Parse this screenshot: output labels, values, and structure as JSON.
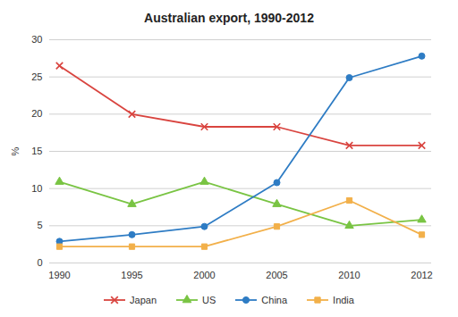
{
  "chart_data": {
    "type": "line",
    "title": "Australian export, 1990-2012",
    "y_label": "%",
    "categories": [
      "1990",
      "1995",
      "2000",
      "2005",
      "2010",
      "2012"
    ],
    "series": [
      {
        "name": "Japan",
        "color": "#d9443f",
        "marker": "x",
        "values": [
          26.5,
          20,
          18.3,
          18.3,
          15.8,
          15.8
        ]
      },
      {
        "name": "US",
        "color": "#79c443",
        "marker": "triangle",
        "values": [
          10.9,
          7.9,
          10.9,
          7.9,
          5,
          5.8
        ]
      },
      {
        "name": "China",
        "color": "#2e7cc4",
        "marker": "circle",
        "values": [
          2.9,
          3.8,
          4.9,
          10.8,
          24.9,
          27.8
        ]
      },
      {
        "name": "India",
        "color": "#f2b04a",
        "marker": "square",
        "values": [
          2.2,
          2.2,
          2.2,
          4.9,
          8.4,
          3.8
        ]
      }
    ],
    "ylim": [
      0,
      30
    ],
    "yticks": [
      0,
      5,
      10,
      15,
      20,
      25,
      30
    ],
    "grid": true,
    "legend": "bottom"
  }
}
